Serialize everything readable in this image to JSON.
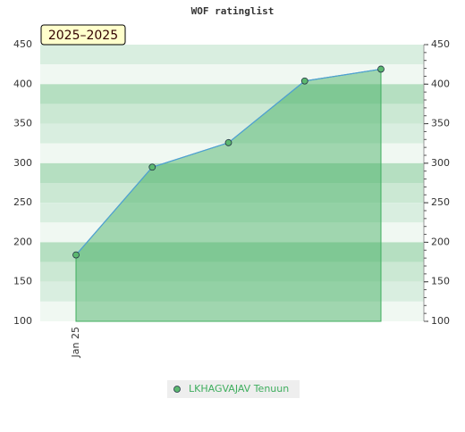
{
  "chart_data": {
    "type": "area",
    "title": "WOF ratinglist",
    "annotation": "2025–2025",
    "categories": [
      "Jan 25",
      null,
      null,
      null,
      null
    ],
    "series": [
      {
        "name": "LKHAGVAJAV Tenuun",
        "color": "#3fae5e",
        "line_color": "#4f9fd6",
        "values": [
          184,
          295,
          326,
          404,
          419
        ]
      }
    ],
    "ylim": [
      100,
      450
    ],
    "yticks": [
      100,
      150,
      200,
      250,
      300,
      350,
      400,
      450
    ],
    "y2lim": [
      100,
      450
    ],
    "y2ticks": [
      100,
      150,
      200,
      250,
      300,
      350,
      400,
      450
    ],
    "grid": true,
    "legend": "bottom"
  }
}
